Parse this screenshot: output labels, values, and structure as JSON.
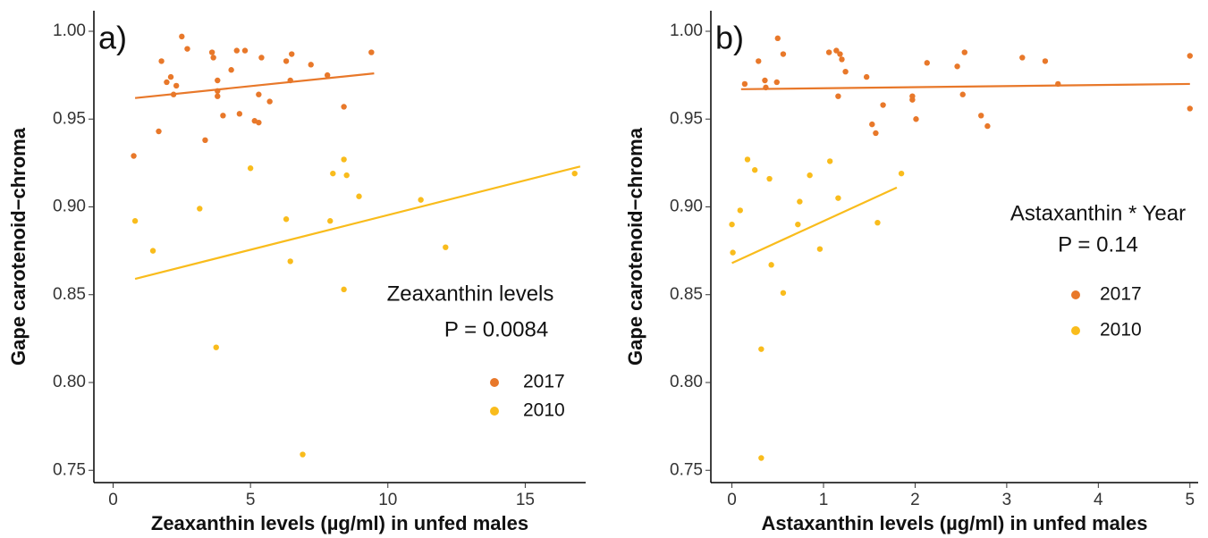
{
  "chart_data": [
    {
      "type": "scatter",
      "panel_label": "a)",
      "xlabel": "Zeaxanthin levels (µg/ml) in unfed males",
      "ylabel": "Gape carotenoid−chroma",
      "annotations": [
        "Zeaxanthin levels",
        "P = 0.0084"
      ],
      "xlim": [
        -0.7,
        17.2
      ],
      "ylim": [
        0.743,
        1.0117
      ],
      "xticks": [
        0,
        5,
        10,
        15
      ],
      "yticks": [
        0.75,
        {
          "value": 0.8,
          "label": "0.80"
        },
        0.85,
        {
          "value": 0.9,
          "label": "0.90"
        },
        0.95,
        {
          "value": 1.0,
          "label": "1.00"
        }
      ],
      "series": [
        {
          "name": "2017",
          "color": "#e8782a",
          "x": [
            0.75,
            1.66,
            1.76,
            1.95,
            2.1,
            2.2,
            2.3,
            2.5,
            2.7,
            3.35,
            3.6,
            3.65,
            3.8,
            3.8,
            3.8,
            4.0,
            4.3,
            4.5,
            4.6,
            4.8,
            5.15,
            5.3,
            5.3,
            5.4,
            5.7,
            6.3,
            6.5,
            6.45,
            7.2,
            7.8,
            8.4,
            9.4
          ],
          "y": [
            0.929,
            0.943,
            0.983,
            0.971,
            0.974,
            0.964,
            0.969,
            0.997,
            0.99,
            0.938,
            0.988,
            0.985,
            0.972,
            0.966,
            0.963,
            0.952,
            0.978,
            0.989,
            0.953,
            0.989,
            0.949,
            0.948,
            0.964,
            0.985,
            0.96,
            0.983,
            0.987,
            0.972,
            0.981,
            0.975,
            0.957,
            0.988
          ],
          "fit": {
            "x": [
              0.8,
              9.5
            ],
            "y": [
              0.962,
              0.976
            ]
          }
        },
        {
          "name": "2010",
          "color": "#f9bc1c",
          "x": [
            0.8,
            1.45,
            3.15,
            3.75,
            5.0,
            6.3,
            6.45,
            6.9,
            7.9,
            8.0,
            8.4,
            8.4,
            8.5,
            8.95,
            11.2,
            12.1,
            16.8
          ],
          "y": [
            0.892,
            0.875,
            0.899,
            0.82,
            0.922,
            0.893,
            0.869,
            0.759,
            0.892,
            0.919,
            0.853,
            0.927,
            0.918,
            0.906,
            0.904,
            0.877,
            0.919
          ],
          "fit": {
            "x": [
              0.8,
              17.0
            ],
            "y": [
              0.859,
              0.923
            ]
          }
        }
      ]
    },
    {
      "type": "scatter",
      "panel_label": "b)",
      "xlabel": "Astaxanthin levels (µg/ml) in unfed males",
      "ylabel": "Gape carotenoid−chroma",
      "annotations": [
        "Astaxanthin * Year",
        "P = 0.14"
      ],
      "xlim": [
        -0.23,
        5.09
      ],
      "ylim": [
        0.743,
        1.0117
      ],
      "xticks": [
        0,
        1,
        2,
        3,
        4,
        5
      ],
      "yticks": [
        0.75,
        {
          "value": 0.8,
          "label": "0.80"
        },
        0.85,
        {
          "value": 0.9,
          "label": "0.90"
        },
        0.95,
        {
          "value": 1.0,
          "label": "1.00"
        }
      ],
      "series": [
        {
          "name": "2017",
          "color": "#e8782a",
          "x": [
            0.14,
            0.29,
            0.36,
            0.37,
            0.49,
            0.5,
            0.56,
            1.06,
            1.14,
            1.18,
            1.2,
            1.24,
            1.16,
            1.47,
            1.53,
            1.57,
            1.65,
            1.97,
            1.97,
            2.01,
            2.13,
            2.46,
            2.52,
            2.54,
            2.72,
            2.79,
            3.17,
            3.42,
            3.56,
            5.0,
            5.0
          ],
          "y": [
            0.97,
            0.983,
            0.972,
            0.968,
            0.971,
            0.996,
            0.987,
            0.988,
            0.989,
            0.987,
            0.984,
            0.977,
            0.963,
            0.974,
            0.947,
            0.942,
            0.958,
            0.963,
            0.961,
            0.95,
            0.982,
            0.98,
            0.964,
            0.988,
            0.952,
            0.946,
            0.985,
            0.983,
            0.97,
            0.956,
            0.986
          ],
          "fit": {
            "x": [
              0.1,
              5.0
            ],
            "y": [
              0.967,
              0.97
            ]
          }
        },
        {
          "name": "2010",
          "color": "#f9bc1c",
          "x": [
            0,
            0.01,
            0.09,
            0.17,
            0.25,
            0.32,
            0.32,
            0.41,
            0.43,
            0.56,
            0.74,
            0.72,
            0.85,
            0.96,
            1.07,
            1.16,
            1.59,
            1.85
          ],
          "y": [
            0.89,
            0.874,
            0.898,
            0.927,
            0.921,
            0.819,
            0.757,
            0.916,
            0.867,
            0.851,
            0.903,
            0.89,
            0.918,
            0.876,
            0.926,
            0.905,
            0.891,
            0.919
          ],
          "fit": {
            "x": [
              0,
              1.8
            ],
            "y": [
              0.868,
              0.911
            ]
          }
        }
      ]
    }
  ]
}
